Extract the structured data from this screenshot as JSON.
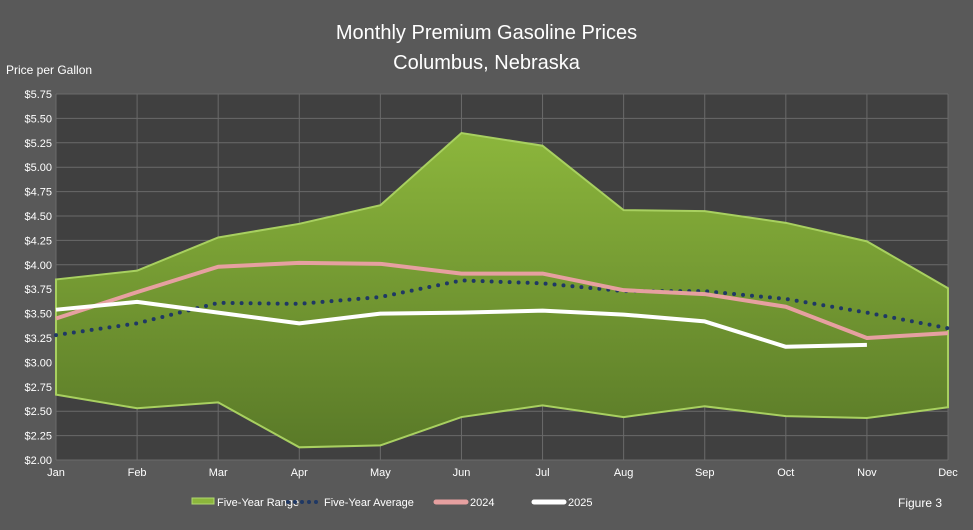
{
  "chart_data": {
    "type": "area",
    "title": "Monthly Premium Gasoline Prices",
    "subtitle": "Columbus, Nebraska",
    "ylabel": "Price per Gallon",
    "xlabel": "",
    "ylim": [
      2.0,
      5.75
    ],
    "yticks": [
      "$2.00",
      "$2.25",
      "$2.50",
      "$2.75",
      "$3.00",
      "$3.25",
      "$3.50",
      "$3.75",
      "$4.00",
      "$4.25",
      "$4.50",
      "$4.75",
      "$5.00",
      "$5.25",
      "$5.50",
      "$5.75"
    ],
    "categories": [
      "Jan",
      "Feb",
      "Mar",
      "Apr",
      "May",
      "Jun",
      "Jul",
      "Aug",
      "Sep",
      "Oct",
      "Nov",
      "Dec"
    ],
    "grid": true,
    "legend_position": "bottom",
    "range": {
      "name": "Five-Year Range",
      "color": "#8cb63c",
      "high": [
        3.85,
        3.94,
        4.28,
        4.42,
        4.61,
        5.35,
        5.22,
        4.56,
        4.55,
        4.43,
        4.24,
        3.76
      ],
      "low": [
        2.67,
        2.53,
        2.59,
        2.13,
        2.15,
        2.44,
        2.56,
        2.44,
        2.55,
        2.45,
        2.43,
        2.54
      ]
    },
    "series": [
      {
        "name": "Five-Year Average",
        "color": "#1f3864",
        "style": "dotted",
        "values": [
          3.28,
          3.4,
          3.61,
          3.6,
          3.67,
          3.84,
          3.81,
          3.73,
          3.73,
          3.65,
          3.51,
          3.35
        ]
      },
      {
        "name": "2024",
        "color": "#e6a0a0",
        "style": "solid",
        "values": [
          3.45,
          3.72,
          3.98,
          4.02,
          4.01,
          3.91,
          3.91,
          3.74,
          3.7,
          3.57,
          3.25,
          3.3
        ]
      },
      {
        "name": "2025",
        "color": "#ffffff",
        "style": "solid",
        "values": [
          3.54,
          3.62,
          3.51,
          3.4,
          3.5,
          3.51,
          3.53,
          3.49,
          3.42,
          3.16,
          3.18,
          null
        ]
      }
    ],
    "annotation": "Figure 3"
  }
}
